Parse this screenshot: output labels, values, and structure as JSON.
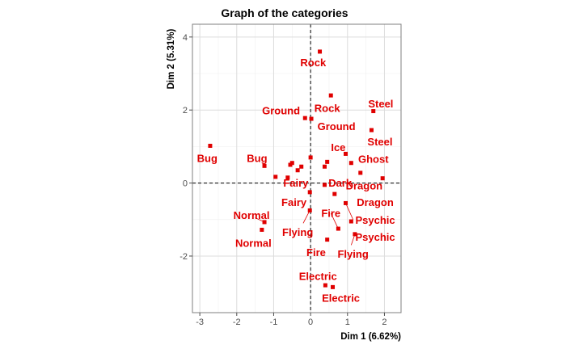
{
  "chart_data": {
    "type": "scatter",
    "title": "Graph of the categories",
    "xlabel": "Dim 1 (6.62%)",
    "ylabel": "Dim 2 (5.31%)",
    "xlim": [
      -3.2,
      2.45
    ],
    "ylim": [
      -3.55,
      4.35
    ],
    "xticks": [
      -3,
      -2,
      -1,
      0,
      1,
      2
    ],
    "yticks": [
      -2,
      0,
      2,
      4
    ],
    "grid": true,
    "reference_lines": {
      "x": 0,
      "y": 0
    },
    "color": "#e00000",
    "points": [
      {
        "x": 0.25,
        "y": 3.6
      },
      {
        "x": 0.55,
        "y": 2.4
      },
      {
        "x": 1.7,
        "y": 1.97
      },
      {
        "x": 1.65,
        "y": 1.45
      },
      {
        "x": -0.15,
        "y": 1.78
      },
      {
        "x": 0.02,
        "y": 1.76
      },
      {
        "x": -2.72,
        "y": 1.02
      },
      {
        "x": -1.25,
        "y": 0.47
      },
      {
        "x": -0.5,
        "y": 0.55
      },
      {
        "x": -0.55,
        "y": 0.5
      },
      {
        "x": -0.35,
        "y": 0.35
      },
      {
        "x": -0.25,
        "y": 0.45
      },
      {
        "x": -0.62,
        "y": 0.15
      },
      {
        "x": -0.95,
        "y": 0.17
      },
      {
        "x": 0.0,
        "y": 0.7
      },
      {
        "x": 0.95,
        "y": 0.8
      },
      {
        "x": 1.1,
        "y": 0.55
      },
      {
        "x": 0.45,
        "y": 0.58
      },
      {
        "x": 0.38,
        "y": 0.45
      },
      {
        "x": 1.35,
        "y": 0.28
      },
      {
        "x": 1.95,
        "y": 0.13
      },
      {
        "x": 0.38,
        "y": -0.05
      },
      {
        "x": 0.65,
        "y": -0.3
      },
      {
        "x": -0.02,
        "y": -0.25
      },
      {
        "x": 0.95,
        "y": -0.55
      },
      {
        "x": -0.02,
        "y": -0.75
      },
      {
        "x": 1.1,
        "y": -1.05
      },
      {
        "x": -1.25,
        "y": -1.07
      },
      {
        "x": -1.32,
        "y": -1.28
      },
      {
        "x": 0.75,
        "y": -1.25
      },
      {
        "x": 1.2,
        "y": -1.4
      },
      {
        "x": 0.45,
        "y": -1.55
      },
      {
        "x": 0.4,
        "y": -2.8
      },
      {
        "x": 0.6,
        "y": -2.85
      }
    ],
    "labels": [
      {
        "text": "Rock",
        "x": 0.07,
        "y": 3.3
      },
      {
        "text": "Rock",
        "x": 0.45,
        "y": 2.05
      },
      {
        "text": "Steel",
        "x": 1.9,
        "y": 2.17
      },
      {
        "text": "Steel",
        "x": 1.88,
        "y": 1.13
      },
      {
        "text": "Ground",
        "x": -0.8,
        "y": 1.98
      },
      {
        "text": "Ground",
        "x": 0.7,
        "y": 1.55
      },
      {
        "text": "Bug",
        "x": -2.8,
        "y": 0.68
      },
      {
        "text": "Bug",
        "x": -1.45,
        "y": 0.68
      },
      {
        "text": "Ice",
        "x": 0.75,
        "y": 0.98
      },
      {
        "text": "Ghost",
        "x": 1.7,
        "y": 0.65
      },
      {
        "text": "Fairy",
        "x": -0.4,
        "y": 0.0
      },
      {
        "text": "Dark",
        "x": 0.8,
        "y": 0.0
      },
      {
        "text": "Dragon",
        "x": 1.45,
        "y": -0.08
      },
      {
        "text": "Fairy",
        "x": -0.45,
        "y": -0.53
      },
      {
        "text": "Dragon",
        "x": 1.75,
        "y": -0.53
      },
      {
        "text": "Fire",
        "x": 0.55,
        "y": -0.83
      },
      {
        "text": "Psychic",
        "x": 1.75,
        "y": -1.02
      },
      {
        "text": "Normal",
        "x": -1.6,
        "y": -0.88
      },
      {
        "text": "Flying",
        "x": -0.35,
        "y": -1.35
      },
      {
        "text": "Psychic",
        "x": 1.75,
        "y": -1.48
      },
      {
        "text": "Normal",
        "x": -1.55,
        "y": -1.65
      },
      {
        "text": "Fire",
        "x": 0.15,
        "y": -1.9
      },
      {
        "text": "Flying",
        "x": 1.15,
        "y": -1.95
      },
      {
        "text": "Electric",
        "x": 0.2,
        "y": -2.55
      },
      {
        "text": "Electric",
        "x": 0.82,
        "y": -3.15
      }
    ],
    "leaders": [
      {
        "x1": 0.55,
        "y1": -0.83,
        "x2": 0.75,
        "y2": -1.25
      },
      {
        "x1": 0.95,
        "y1": -0.55,
        "x2": 1.15,
        "y2": -1.0
      },
      {
        "x1": 1.2,
        "y1": -1.4,
        "x2": 1.1,
        "y2": -1.7
      },
      {
        "x1": -0.02,
        "y1": -0.75,
        "x2": -0.2,
        "y2": -1.1
      },
      {
        "x1": -1.25,
        "y1": -1.07,
        "x2": -1.5,
        "y2": -0.95
      }
    ]
  }
}
